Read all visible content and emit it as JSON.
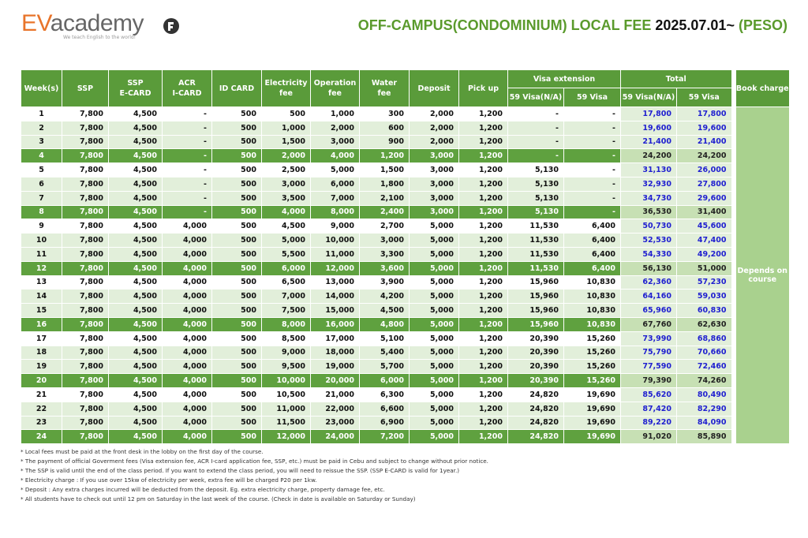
{
  "header": {
    "logo_ev": "EV",
    "logo_academy": "academy",
    "tagline": "We teach English to the world!",
    "title_main": "OFF-CAMPUS(CONDOMINIUM) LOCAL FEE",
    "title_date": "2025.07.01~",
    "title_unit": "(PESO)"
  },
  "table": {
    "columns": [
      "Week(s)",
      "SSP",
      "SSP\nE-CARD",
      "ACR\nI-CARD",
      "ID CARD",
      "Electricity\nfee",
      "Operation\nfee",
      "Water\nfee",
      "Deposit",
      "Pick up"
    ],
    "visa_group": "Visa extension",
    "total_group": "Total",
    "sub_columns": [
      "59 Visa(N/A)",
      "59 Visa",
      "59 Visa(N/A)",
      "59 Visa"
    ],
    "book_charge": "Book charge",
    "book_note": "Depends on\ncourse",
    "rows": [
      [
        "1",
        "7,800",
        "4,500",
        "-",
        "500",
        "500",
        "1,000",
        "300",
        "2,000",
        "1,200",
        "-",
        "-",
        "17,800",
        "17,800"
      ],
      [
        "2",
        "7,800",
        "4,500",
        "-",
        "500",
        "1,000",
        "2,000",
        "600",
        "2,000",
        "1,200",
        "-",
        "-",
        "19,600",
        "19,600"
      ],
      [
        "3",
        "7,800",
        "4,500",
        "-",
        "500",
        "1,500",
        "3,000",
        "900",
        "2,000",
        "1,200",
        "-",
        "-",
        "21,400",
        "21,400"
      ],
      [
        "4",
        "7,800",
        "4,500",
        "-",
        "500",
        "2,000",
        "4,000",
        "1,200",
        "3,000",
        "1,200",
        "-",
        "-",
        "24,200",
        "24,200"
      ],
      [
        "5",
        "7,800",
        "4,500",
        "-",
        "500",
        "2,500",
        "5,000",
        "1,500",
        "3,000",
        "1,200",
        "5,130",
        "-",
        "31,130",
        "26,000"
      ],
      [
        "6",
        "7,800",
        "4,500",
        "-",
        "500",
        "3,000",
        "6,000",
        "1,800",
        "3,000",
        "1,200",
        "5,130",
        "-",
        "32,930",
        "27,800"
      ],
      [
        "7",
        "7,800",
        "4,500",
        "-",
        "500",
        "3,500",
        "7,000",
        "2,100",
        "3,000",
        "1,200",
        "5,130",
        "-",
        "34,730",
        "29,600"
      ],
      [
        "8",
        "7,800",
        "4,500",
        "-",
        "500",
        "4,000",
        "8,000",
        "2,400",
        "3,000",
        "1,200",
        "5,130",
        "-",
        "36,530",
        "31,400"
      ],
      [
        "9",
        "7,800",
        "4,500",
        "4,000",
        "500",
        "4,500",
        "9,000",
        "2,700",
        "5,000",
        "1,200",
        "11,530",
        "6,400",
        "50,730",
        "45,600"
      ],
      [
        "10",
        "7,800",
        "4,500",
        "4,000",
        "500",
        "5,000",
        "10,000",
        "3,000",
        "5,000",
        "1,200",
        "11,530",
        "6,400",
        "52,530",
        "47,400"
      ],
      [
        "11",
        "7,800",
        "4,500",
        "4,000",
        "500",
        "5,500",
        "11,000",
        "3,300",
        "5,000",
        "1,200",
        "11,530",
        "6,400",
        "54,330",
        "49,200"
      ],
      [
        "12",
        "7,800",
        "4,500",
        "4,000",
        "500",
        "6,000",
        "12,000",
        "3,600",
        "5,000",
        "1,200",
        "11,530",
        "6,400",
        "56,130",
        "51,000"
      ],
      [
        "13",
        "7,800",
        "4,500",
        "4,000",
        "500",
        "6,500",
        "13,000",
        "3,900",
        "5,000",
        "1,200",
        "15,960",
        "10,830",
        "62,360",
        "57,230"
      ],
      [
        "14",
        "7,800",
        "4,500",
        "4,000",
        "500",
        "7,000",
        "14,000",
        "4,200",
        "5,000",
        "1,200",
        "15,960",
        "10,830",
        "64,160",
        "59,030"
      ],
      [
        "15",
        "7,800",
        "4,500",
        "4,000",
        "500",
        "7,500",
        "15,000",
        "4,500",
        "5,000",
        "1,200",
        "15,960",
        "10,830",
        "65,960",
        "60,830"
      ],
      [
        "16",
        "7,800",
        "4,500",
        "4,000",
        "500",
        "8,000",
        "16,000",
        "4,800",
        "5,000",
        "1,200",
        "15,960",
        "10,830",
        "67,760",
        "62,630"
      ],
      [
        "17",
        "7,800",
        "4,500",
        "4,000",
        "500",
        "8,500",
        "17,000",
        "5,100",
        "5,000",
        "1,200",
        "20,390",
        "15,260",
        "73,990",
        "68,860"
      ],
      [
        "18",
        "7,800",
        "4,500",
        "4,000",
        "500",
        "9,000",
        "18,000",
        "5,400",
        "5,000",
        "1,200",
        "20,390",
        "15,260",
        "75,790",
        "70,660"
      ],
      [
        "19",
        "7,800",
        "4,500",
        "4,000",
        "500",
        "9,500",
        "19,000",
        "5,700",
        "5,000",
        "1,200",
        "20,390",
        "15,260",
        "77,590",
        "72,460"
      ],
      [
        "20",
        "7,800",
        "4,500",
        "4,000",
        "500",
        "10,000",
        "20,000",
        "6,000",
        "5,000",
        "1,200",
        "20,390",
        "15,260",
        "79,390",
        "74,260"
      ],
      [
        "21",
        "7,800",
        "4,500",
        "4,000",
        "500",
        "10,500",
        "21,000",
        "6,300",
        "5,000",
        "1,200",
        "24,820",
        "19,690",
        "85,620",
        "80,490"
      ],
      [
        "22",
        "7,800",
        "4,500",
        "4,000",
        "500",
        "11,000",
        "22,000",
        "6,600",
        "5,000",
        "1,200",
        "24,820",
        "19,690",
        "87,420",
        "82,290"
      ],
      [
        "23",
        "7,800",
        "4,500",
        "4,000",
        "500",
        "11,500",
        "23,000",
        "6,900",
        "5,000",
        "1,200",
        "24,820",
        "19,690",
        "89,220",
        "84,090"
      ],
      [
        "24",
        "7,800",
        "4,500",
        "4,000",
        "500",
        "12,000",
        "24,000",
        "7,200",
        "5,000",
        "1,200",
        "24,820",
        "19,690",
        "91,020",
        "85,890"
      ]
    ]
  },
  "notes": [
    "* Local fees must be paid at the front desk in the lobby on the first day of the course.",
    "* The payment of official Goverment fees (Visa extension fee, ACR I-card application fee, SSP, etc.) must be paid in Cebu and subject to change without prior notice.",
    "* The SSP is valid until the end of the class period. If you want to extend the class period, you will need to reissue the SSP. (SSP E-CARD is valid for 1year.)",
    "* Electricity charge : If you use over 15kw of electricity per week, extra fee will be charged P20 per 1kw.",
    "* Deposit : Any extra charges incurred will be deducted from the deposit. Eg. extra electricity charge, property damage fee, etc.",
    "* All students have to check out until 12 pm on Saturday in the last week of the course. (Check in date is available on Saturday or Sunday)"
  ]
}
